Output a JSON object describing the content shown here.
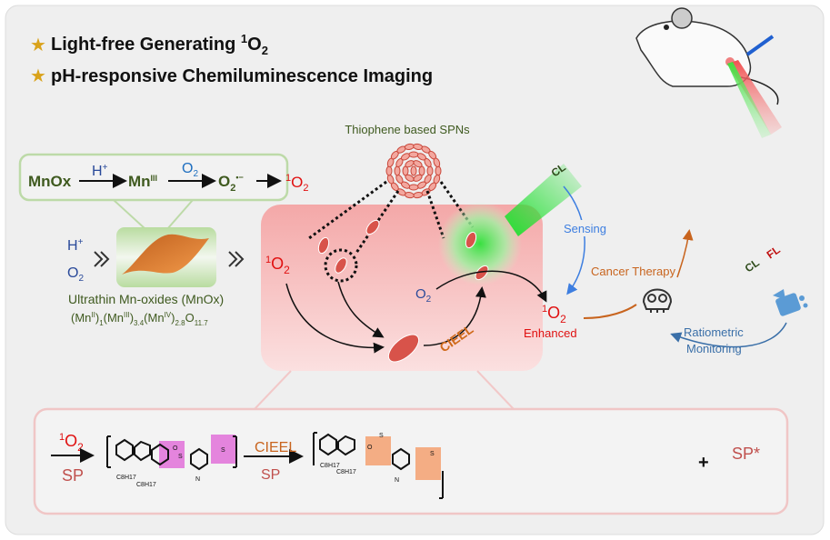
{
  "headline": {
    "line1": {
      "text": "Light-free Generating ",
      "sup": "1",
      "main": "O",
      "sub": "2"
    },
    "line2": {
      "text": "pH-responsive Chemiluminescence Imaging"
    },
    "star_icon": "star-icon"
  },
  "mechanism": {
    "mnox": "MnOx",
    "h_plus": "H",
    "plus": "+",
    "mn": "Mn",
    "mn_ox_state": "III",
    "o2": "O",
    "two": "2",
    "superoxide_dot": "•−",
    "singlet_sup": "1"
  },
  "nanosheet": {
    "inputs_h": "H",
    "inputs_plus": "+",
    "inputs_o": "O",
    "inputs_2": "2",
    "label": "Ultrathin Mn-oxides (MnOx)",
    "formula": [
      {
        "t": "(Mn"
      },
      {
        "sup": "II"
      },
      {
        "t": ")"
      },
      {
        "sub": "1"
      },
      {
        "t": "(Mn"
      },
      {
        "sup": "III"
      },
      {
        "t": ")"
      },
      {
        "sub": "3.4"
      },
      {
        "t": "(Mn"
      },
      {
        "sup": "IV"
      },
      {
        "t": ")"
      },
      {
        "sub": "2.8"
      },
      {
        "t": "O"
      },
      {
        "sub": "11.7"
      }
    ]
  },
  "spn": {
    "label": "Thiophene based SPNs",
    "singlet_sup": "1",
    "o": "O",
    "two": "2",
    "cieel": "CIEEL",
    "cl_beam": "CL"
  },
  "application": {
    "enhanced_sup": "1",
    "enhanced_o": "O",
    "enhanced_2": "2",
    "enhanced": "Enhanced",
    "sensing": "Sensing",
    "cancer_therapy": "Cancer Therapy",
    "ratiometric_1": "Ratiometric",
    "ratiometric_2": "Monitoring",
    "cl": "CL",
    "fl": "FL"
  },
  "reaction": {
    "reagent_sup": "1",
    "reagent_o": "O",
    "reagent_2": "2",
    "sp": "SP",
    "cieel": "CIEEL",
    "sp2": "SP",
    "plus": "+",
    "sp_star": "SP*",
    "c8h17": "C8H17",
    "atom_o": "O",
    "atom_s": "S",
    "atom_n": "N"
  },
  "colors": {
    "mn_green": "#3f5a1f",
    "blue": "#2a4a9a",
    "red": "#e01010",
    "orange": "#c8641e",
    "sp_red": "#c0504d",
    "sensing_blue": "#3d7ee0",
    "star": "#d9a21b"
  }
}
